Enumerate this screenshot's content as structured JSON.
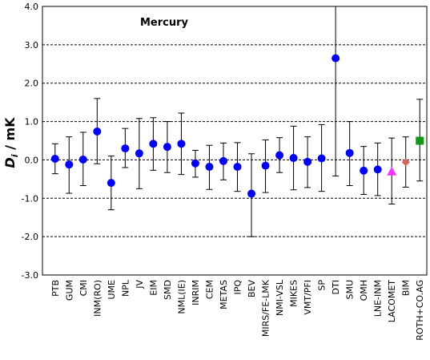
{
  "chart_data": {
    "type": "scatter",
    "title": "Mercury",
    "ylabel_main": "D",
    "ylabel_sub": "i",
    "ylabel_rest": " / mK",
    "xlabel": "",
    "ylim": [
      -3.0,
      4.0
    ],
    "yticks": [
      4.0,
      3.0,
      2.0,
      1.0,
      0.0,
      -1.0,
      -2.0,
      -3.0
    ],
    "ytick_labels": [
      "4.0",
      "3.0",
      "2.0",
      "1.0",
      "0.0",
      "-1.0",
      "-2.0",
      "-3.0"
    ],
    "grid": "horizontal dashed",
    "categories": [
      "PTB",
      "GUM",
      "CMI",
      "INM(RO)",
      "UME",
      "NPL",
      "JV",
      "EIM",
      "SMD",
      "NML(IE)",
      "INRIM",
      "CEM",
      "METAS",
      "IPQ",
      "BEV",
      "MIRS/FE-LMK",
      "NMI-VSL",
      "MIKES",
      "VMT/PFI",
      "SP",
      "DTI",
      "SMU",
      "OMH",
      "LNE-INM",
      "LACOMET",
      "BIM",
      "ROTH+CO.AG"
    ],
    "values": [
      0.03,
      -0.12,
      0.01,
      0.74,
      -0.6,
      0.3,
      0.17,
      0.42,
      0.34,
      0.42,
      -0.09,
      -0.18,
      -0.03,
      -0.18,
      -0.88,
      -0.15,
      0.12,
      0.05,
      -0.05,
      0.04,
      2.65,
      0.18,
      -0.28,
      -0.25,
      -0.3,
      -0.06,
      0.5
    ],
    "upper": [
      0.42,
      0.6,
      0.72,
      1.6,
      0.1,
      0.82,
      1.08,
      1.1,
      1.0,
      1.22,
      0.25,
      0.38,
      0.44,
      0.45,
      0.16,
      0.52,
      0.58,
      0.88,
      0.6,
      0.92,
      4.0,
      1.0,
      0.35,
      0.44,
      0.57,
      0.6,
      1.58
    ],
    "lower": [
      -0.36,
      -0.87,
      -0.67,
      -0.1,
      -1.3,
      -0.2,
      -0.75,
      -0.27,
      -0.33,
      -0.38,
      -0.45,
      -0.77,
      -0.52,
      -0.82,
      -2.0,
      -0.85,
      -0.33,
      -0.78,
      -0.72,
      -0.82,
      -0.42,
      -0.67,
      -0.9,
      -0.93,
      -1.15,
      -0.71,
      -0.55
    ],
    "markers": [
      "circle",
      "circle",
      "circle",
      "circle",
      "circle",
      "circle",
      "circle",
      "circle",
      "circle",
      "circle",
      "circle",
      "circle",
      "circle",
      "circle",
      "circle",
      "circle",
      "circle",
      "circle",
      "circle",
      "circle",
      "circle",
      "circle",
      "circle",
      "circle",
      "triangle",
      "diamond",
      "square"
    ],
    "marker_colors": [
      "#0000ff",
      "#0000ff",
      "#0000ff",
      "#0000ff",
      "#0000ff",
      "#0000ff",
      "#0000ff",
      "#0000ff",
      "#0000ff",
      "#0000ff",
      "#0000ff",
      "#0000ff",
      "#0000ff",
      "#0000ff",
      "#0000ff",
      "#0000ff",
      "#0000ff",
      "#0000ff",
      "#0000ff",
      "#0000ff",
      "#0000ff",
      "#0000ff",
      "#0000ff",
      "#0000ff",
      "#ff33ff",
      "#e0605a",
      "#119911"
    ]
  }
}
